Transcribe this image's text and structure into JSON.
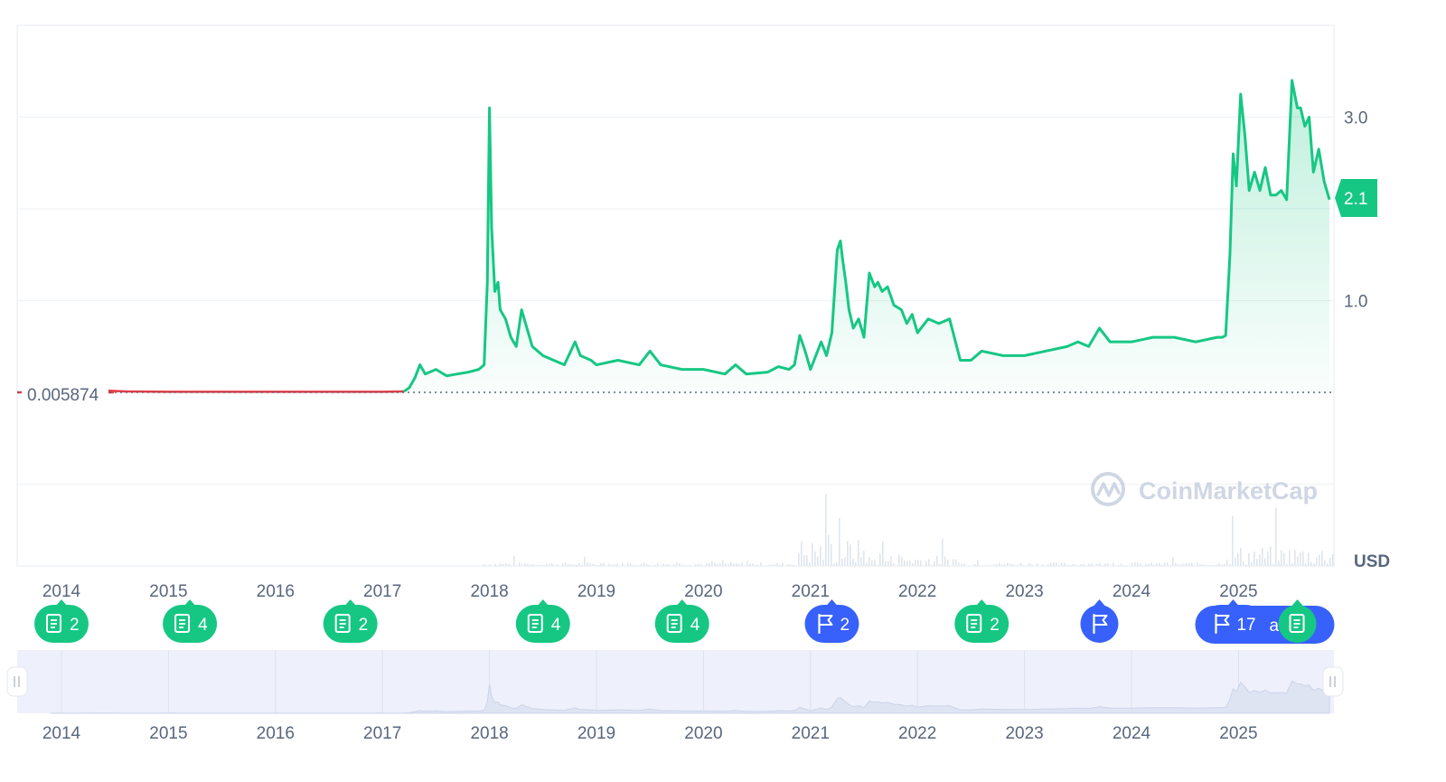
{
  "colors": {
    "accent": "#16c784",
    "news_badge": "#16c784",
    "event_badge": "#3861fb",
    "baseline_red": "#ea3943",
    "grid": "#eff2f5",
    "text": "#58667e",
    "navigator_bg": "#eef1fb"
  },
  "watermark": "CoinMarketCap",
  "currency_label": "USD",
  "current_price_label": "2.1",
  "baseline_label": "0.005874",
  "chart_data": {
    "type": "area",
    "title": "",
    "xlabel": "",
    "ylabel": "",
    "y_ticks": [
      "3.0",
      "1.0"
    ],
    "x_ticks": [
      "2014",
      "2015",
      "2016",
      "2017",
      "2018",
      "2019",
      "2020",
      "2021",
      "2022",
      "2023",
      "2024",
      "2025"
    ],
    "x_range": [
      2013.0,
      2025.85
    ],
    "ylim": [
      0,
      3.6
    ],
    "baseline_value": 0.005874,
    "current_value": 2.1,
    "series": [
      {
        "x": [
          2013.9,
          2014.2,
          2014.4,
          2014.6,
          2015.0,
          2015.5,
          2016.0,
          2016.5,
          2017.0,
          2017.2,
          2017.25,
          2017.3,
          2017.35,
          2017.4,
          2017.5,
          2017.6,
          2017.7,
          2017.8,
          2017.9,
          2017.95,
          2017.98,
          2018.0,
          2018.02,
          2018.05,
          2018.08,
          2018.1,
          2018.15,
          2018.2,
          2018.25,
          2018.3,
          2018.35,
          2018.4,
          2018.45,
          2018.5,
          2018.6,
          2018.7,
          2018.8,
          2018.85,
          2018.95,
          2019.0,
          2019.2,
          2019.4,
          2019.5,
          2019.6,
          2019.8,
          2020.0,
          2020.2,
          2020.3,
          2020.4,
          2020.6,
          2020.7,
          2020.8,
          2020.85,
          2020.9,
          2020.95,
          2021.0,
          2021.1,
          2021.15,
          2021.2,
          2021.25,
          2021.28,
          2021.3,
          2021.33,
          2021.36,
          2021.4,
          2021.45,
          2021.5,
          2021.55,
          2021.6,
          2021.63,
          2021.67,
          2021.72,
          2021.78,
          2021.85,
          2021.9,
          2021.95,
          2022.0,
          2022.1,
          2022.2,
          2022.3,
          2022.4,
          2022.5,
          2022.6,
          2022.8,
          2023.0,
          2023.2,
          2023.4,
          2023.5,
          2023.6,
          2023.7,
          2023.8,
          2024.0,
          2024.2,
          2024.4,
          2024.6,
          2024.8,
          2024.85,
          2024.88,
          2024.92,
          2024.95,
          2024.98,
          2025.02,
          2025.06,
          2025.1,
          2025.15,
          2025.2,
          2025.25,
          2025.3,
          2025.35,
          2025.4,
          2025.45,
          2025.5,
          2025.55,
          2025.58,
          2025.62,
          2025.66,
          2025.7,
          2025.75,
          2025.8,
          2025.85
        ],
        "y": [
          0.006,
          0.006,
          0.02,
          0.01,
          0.006,
          0.006,
          0.006,
          0.006,
          0.006,
          0.01,
          0.05,
          0.15,
          0.3,
          0.2,
          0.25,
          0.18,
          0.2,
          0.22,
          0.25,
          0.3,
          1.2,
          3.1,
          1.8,
          1.1,
          1.2,
          0.9,
          0.8,
          0.6,
          0.5,
          0.9,
          0.7,
          0.5,
          0.45,
          0.4,
          0.35,
          0.3,
          0.55,
          0.4,
          0.35,
          0.3,
          0.35,
          0.3,
          0.45,
          0.3,
          0.25,
          0.25,
          0.2,
          0.3,
          0.2,
          0.22,
          0.28,
          0.25,
          0.3,
          0.62,
          0.45,
          0.25,
          0.55,
          0.4,
          0.65,
          1.55,
          1.65,
          1.45,
          1.2,
          0.9,
          0.7,
          0.8,
          0.6,
          1.3,
          1.15,
          1.2,
          1.1,
          1.15,
          0.95,
          0.9,
          0.75,
          0.85,
          0.65,
          0.8,
          0.75,
          0.8,
          0.35,
          0.35,
          0.45,
          0.4,
          0.4,
          0.45,
          0.5,
          0.55,
          0.5,
          0.7,
          0.55,
          0.55,
          0.6,
          0.6,
          0.55,
          0.6,
          0.6,
          0.62,
          1.5,
          2.6,
          2.25,
          3.25,
          2.8,
          2.2,
          2.4,
          2.2,
          2.45,
          2.15,
          2.15,
          2.2,
          2.1,
          3.4,
          3.1,
          3.1,
          2.9,
          3.0,
          2.4,
          2.65,
          2.3,
          2.1
        ]
      }
    ],
    "volume_note": "volume bars shown below price area",
    "news_markers": [
      {
        "x": 2014.0,
        "label": "2",
        "kind": "news"
      },
      {
        "x": 2015.2,
        "label": "4",
        "kind": "news"
      },
      {
        "x": 2016.7,
        "label": "2",
        "kind": "news"
      },
      {
        "x": 2018.5,
        "label": "4",
        "kind": "news"
      },
      {
        "x": 2019.8,
        "label": "4",
        "kind": "news"
      },
      {
        "x": 2021.2,
        "label": "2",
        "kind": "event"
      },
      {
        "x": 2022.6,
        "label": "2",
        "kind": "news"
      },
      {
        "x": 2023.7,
        "label": "",
        "kind": "event"
      },
      {
        "x": 2024.95,
        "label": "17",
        "kind": "event"
      },
      {
        "x": 2025.55,
        "label": "",
        "kind": "news"
      }
    ],
    "overlap_fragment": "aly:"
  }
}
